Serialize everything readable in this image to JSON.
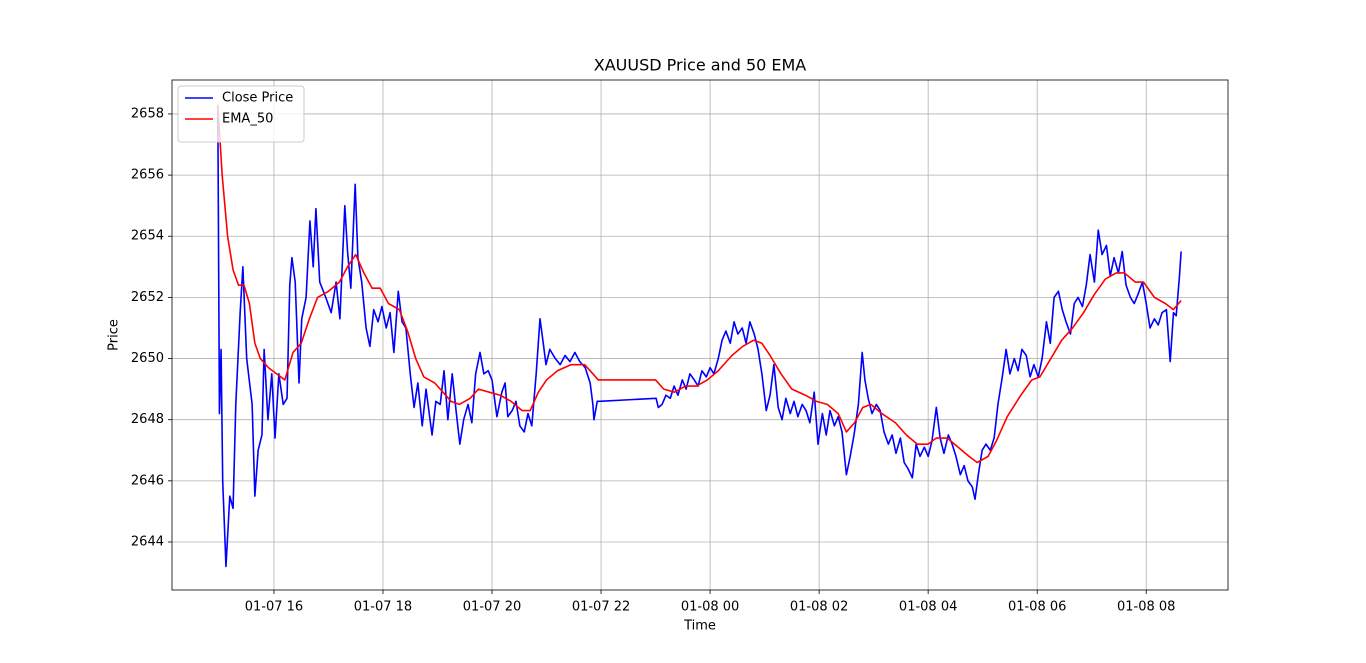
{
  "chart_data": {
    "type": "line",
    "title": "XAUUSD Price and 50 EMA",
    "xlabel": "Time",
    "ylabel": "Price",
    "xlim": [
      14.13,
      33.5
    ],
    "ylim": [
      2642.43,
      2659.11
    ],
    "xticks": [
      {
        "value": 16,
        "label": "01-07 16"
      },
      {
        "value": 18,
        "label": "01-07 18"
      },
      {
        "value": 20,
        "label": "01-07 20"
      },
      {
        "value": 22,
        "label": "01-07 22"
      },
      {
        "value": 24,
        "label": "01-08 00"
      },
      {
        "value": 26,
        "label": "01-08 02"
      },
      {
        "value": 28,
        "label": "01-08 04"
      },
      {
        "value": 30,
        "label": "01-08 06"
      },
      {
        "value": 32,
        "label": "01-08 08"
      }
    ],
    "yticks": [
      2644,
      2646,
      2648,
      2650,
      2652,
      2654,
      2656,
      2658
    ],
    "grid": true,
    "legend": "upper left",
    "series": [
      {
        "name": "Close Price",
        "color": "#0000ff",
        "x": [
          14.97,
          15.0,
          15.03,
          15.06,
          15.12,
          15.19,
          15.25,
          15.3,
          15.38,
          15.43,
          15.5,
          15.6,
          15.65,
          15.71,
          15.78,
          15.82,
          15.89,
          15.96,
          16.02,
          16.09,
          16.17,
          16.24,
          16.29,
          16.33,
          16.39,
          16.46,
          16.51,
          16.59,
          16.66,
          16.72,
          16.77,
          16.84,
          16.95,
          17.05,
          17.14,
          17.21,
          17.3,
          17.35,
          17.41,
          17.49,
          17.54,
          17.61,
          17.69,
          17.76,
          17.83,
          17.91,
          17.98,
          18.06,
          18.13,
          18.2,
          18.28,
          18.35,
          18.42,
          18.5,
          18.57,
          18.64,
          18.72,
          18.79,
          18.9,
          18.97,
          19.05,
          19.12,
          19.19,
          19.27,
          19.34,
          19.41,
          19.48,
          19.56,
          19.63,
          19.7,
          19.78,
          19.85,
          19.93,
          20.0,
          20.09,
          20.18,
          20.24,
          20.29,
          20.37,
          20.44,
          20.51,
          20.59,
          20.66,
          20.73,
          20.81,
          20.88,
          20.94,
          20.99,
          21.06,
          21.16,
          21.25,
          21.34,
          21.43,
          21.52,
          21.61,
          21.71,
          21.8,
          21.85,
          21.87,
          21.93,
          21.98,
          23.01,
          23.05,
          23.12,
          23.19,
          23.27,
          23.34,
          23.41,
          23.49,
          23.56,
          23.63,
          23.71,
          23.78,
          23.85,
          23.93,
          24.0,
          24.07,
          24.15,
          24.22,
          24.29,
          24.37,
          24.44,
          24.51,
          24.59,
          24.66,
          24.73,
          24.81,
          24.88,
          24.95,
          25.03,
          25.1,
          25.17,
          25.25,
          25.32,
          25.39,
          25.47,
          25.54,
          25.61,
          25.69,
          25.76,
          25.83,
          25.91,
          25.98,
          26.06,
          26.13,
          26.2,
          26.28,
          26.35,
          26.42,
          26.5,
          26.57,
          26.64,
          26.72,
          26.79,
          26.84,
          26.9,
          26.97,
          27.05,
          27.12,
          27.19,
          27.27,
          27.34,
          27.41,
          27.49,
          27.56,
          27.63,
          27.71,
          27.78,
          27.85,
          27.93,
          28.0,
          28.07,
          28.15,
          28.22,
          28.29,
          28.37,
          28.44,
          28.51,
          28.59,
          28.66,
          28.73,
          28.81,
          28.86,
          28.92,
          28.99,
          29.06,
          29.14,
          29.21,
          29.28,
          29.36,
          29.43,
          29.5,
          29.58,
          29.65,
          29.72,
          29.8,
          29.87,
          29.94,
          30.02,
          30.09,
          30.17,
          30.24,
          30.31,
          30.39,
          30.46,
          30.53,
          30.61,
          30.68,
          30.75,
          30.83,
          30.9,
          30.97,
          31.05,
          31.12,
          31.19,
          31.27,
          31.34,
          31.41,
          31.49,
          31.56,
          31.63,
          31.71,
          31.78,
          31.85,
          31.93,
          32.0,
          32.07,
          32.15,
          32.22,
          32.29,
          32.37,
          32.44,
          32.5,
          32.55,
          32.61,
          32.64
        ],
        "values": [
          2658.3,
          2648.2,
          2650.3,
          2646,
          2643.2,
          2645.5,
          2645.1,
          2648.5,
          2651.5,
          2653,
          2650,
          2648.5,
          2645.5,
          2647,
          2647.5,
          2650.3,
          2648,
          2649.5,
          2647.4,
          2649.5,
          2648.5,
          2648.7,
          2652.4,
          2653.3,
          2652.5,
          2649.2,
          2651.3,
          2652,
          2654.5,
          2653,
          2654.9,
          2652.5,
          2652,
          2651.5,
          2652.5,
          2651.3,
          2655,
          2653.5,
          2652.3,
          2655.7,
          2653.3,
          2652.5,
          2651,
          2650.4,
          2651.6,
          2651.2,
          2651.7,
          2651,
          2651.5,
          2650.2,
          2652.2,
          2651.2,
          2651,
          2649.5,
          2648.4,
          2649.2,
          2647.8,
          2649,
          2647.5,
          2648.6,
          2648.5,
          2649.6,
          2648,
          2649.5,
          2648.3,
          2647.2,
          2648,
          2648.5,
          2647.9,
          2649.5,
          2650.2,
          2649.5,
          2649.6,
          2649.3,
          2648.1,
          2648.9,
          2649.2,
          2648.1,
          2648.3,
          2648.6,
          2647.8,
          2647.6,
          2648.2,
          2647.8,
          2649.5,
          2651.3,
          2650.5,
          2649.8,
          2650.3,
          2650,
          2649.8,
          2650.1,
          2649.9,
          2650.2,
          2649.9,
          2649.7,
          2649.2,
          2648.5,
          2648,
          2648.6,
          2648.6,
          2648.7,
          2648.4,
          2648.5,
          2648.8,
          2648.7,
          2649.1,
          2648.8,
          2649.3,
          2649,
          2649.5,
          2649.3,
          2649.1,
          2649.6,
          2649.4,
          2649.7,
          2649.5,
          2650,
          2650.6,
          2650.9,
          2650.5,
          2651.2,
          2650.8,
          2651,
          2650.5,
          2651.2,
          2650.8,
          2650.3,
          2649.5,
          2648.3,
          2648.8,
          2649.8,
          2648.4,
          2648,
          2648.7,
          2648.2,
          2648.6,
          2648.1,
          2648.5,
          2648.3,
          2647.9,
          2648.9,
          2647.2,
          2648.2,
          2647.5,
          2648.3,
          2647.8,
          2648.1,
          2647.6,
          2646.2,
          2646.8,
          2647.5,
          2648.5,
          2650.2,
          2649.3,
          2648.7,
          2648.2,
          2648.5,
          2648.3,
          2647.6,
          2647.2,
          2647.5,
          2646.9,
          2647.4,
          2646.6,
          2646.4,
          2646.1,
          2647.2,
          2646.8,
          2647.1,
          2646.8,
          2647.3,
          2648.4,
          2647.4,
          2646.9,
          2647.5,
          2647.2,
          2646.8,
          2646.2,
          2646.5,
          2646,
          2645.8,
          2645.4,
          2646.2,
          2647,
          2647.2,
          2647,
          2647.4,
          2648.5,
          2649.4,
          2650.3,
          2649.5,
          2650,
          2649.6,
          2650.3,
          2650.1,
          2649.4,
          2649.8,
          2649.4,
          2650,
          2651.2,
          2650.5,
          2652,
          2652.2,
          2651.6,
          2651.2,
          2650.8,
          2651.8,
          2652,
          2651.7,
          2652.4,
          2653.4,
          2652.5,
          2654.2,
          2653.4,
          2653.7,
          2652.7,
          2653.3,
          2652.8,
          2653.5,
          2652.4,
          2652,
          2651.8,
          2652.1,
          2652.5,
          2651.8,
          2651,
          2651.3,
          2651.1,
          2651.5,
          2651.6,
          2649.9,
          2651.5,
          2651.4,
          2652.7,
          2653.5
        ]
      },
      {
        "name": "EMA_50",
        "color": "#ff0000",
        "x": [
          14.97,
          15.05,
          15.15,
          15.25,
          15.35,
          15.45,
          15.55,
          15.65,
          15.75,
          15.9,
          16.05,
          16.2,
          16.35,
          16.5,
          16.65,
          16.8,
          17.0,
          17.2,
          17.35,
          17.5,
          17.65,
          17.8,
          17.95,
          18.1,
          18.3,
          18.45,
          18.6,
          18.75,
          18.95,
          19.1,
          19.25,
          19.4,
          19.6,
          19.75,
          19.95,
          20.15,
          20.35,
          20.55,
          20.7,
          20.85,
          21.0,
          21.2,
          21.45,
          21.7,
          21.85,
          21.95,
          23.0,
          23.15,
          23.35,
          23.55,
          23.75,
          23.95,
          24.15,
          24.4,
          24.6,
          24.8,
          24.95,
          25.1,
          25.3,
          25.5,
          25.75,
          25.95,
          26.15,
          26.35,
          26.5,
          26.65,
          26.8,
          26.95,
          27.15,
          27.4,
          27.6,
          27.8,
          28.0,
          28.15,
          28.35,
          28.55,
          28.75,
          28.9,
          29.1,
          29.25,
          29.45,
          29.7,
          29.9,
          30.05,
          30.25,
          30.45,
          30.65,
          30.85,
          31.05,
          31.25,
          31.45,
          31.6,
          31.8,
          31.95,
          32.15,
          32.35,
          32.5,
          32.64
        ],
        "values": [
          2658.3,
          2656,
          2654,
          2652.9,
          2652.4,
          2652.4,
          2651.8,
          2650.5,
          2650,
          2649.7,
          2649.5,
          2649.3,
          2650.2,
          2650.5,
          2651.3,
          2652,
          2652.2,
          2652.5,
          2653,
          2653.4,
          2652.8,
          2652.3,
          2652.3,
          2651.8,
          2651.6,
          2650.9,
          2650,
          2649.4,
          2649.2,
          2648.9,
          2648.6,
          2648.5,
          2648.7,
          2649,
          2648.9,
          2648.8,
          2648.6,
          2648.3,
          2648.3,
          2648.9,
          2649.3,
          2649.6,
          2649.8,
          2649.8,
          2649.5,
          2649.3,
          2649.3,
          2649,
          2648.9,
          2649.1,
          2649.1,
          2649.3,
          2649.6,
          2650.1,
          2650.4,
          2650.6,
          2650.5,
          2650.1,
          2649.5,
          2649,
          2648.8,
          2648.6,
          2648.5,
          2648.2,
          2647.6,
          2647.9,
          2648.4,
          2648.5,
          2648.2,
          2647.9,
          2647.5,
          2647.2,
          2647.2,
          2647.4,
          2647.4,
          2647.1,
          2646.8,
          2646.6,
          2646.8,
          2647.3,
          2648.1,
          2648.8,
          2649.3,
          2649.4,
          2650,
          2650.6,
          2651,
          2651.5,
          2652.1,
          2652.6,
          2652.8,
          2652.8,
          2652.5,
          2652.5,
          2652,
          2651.8,
          2651.6,
          2651.9
        ]
      }
    ]
  }
}
